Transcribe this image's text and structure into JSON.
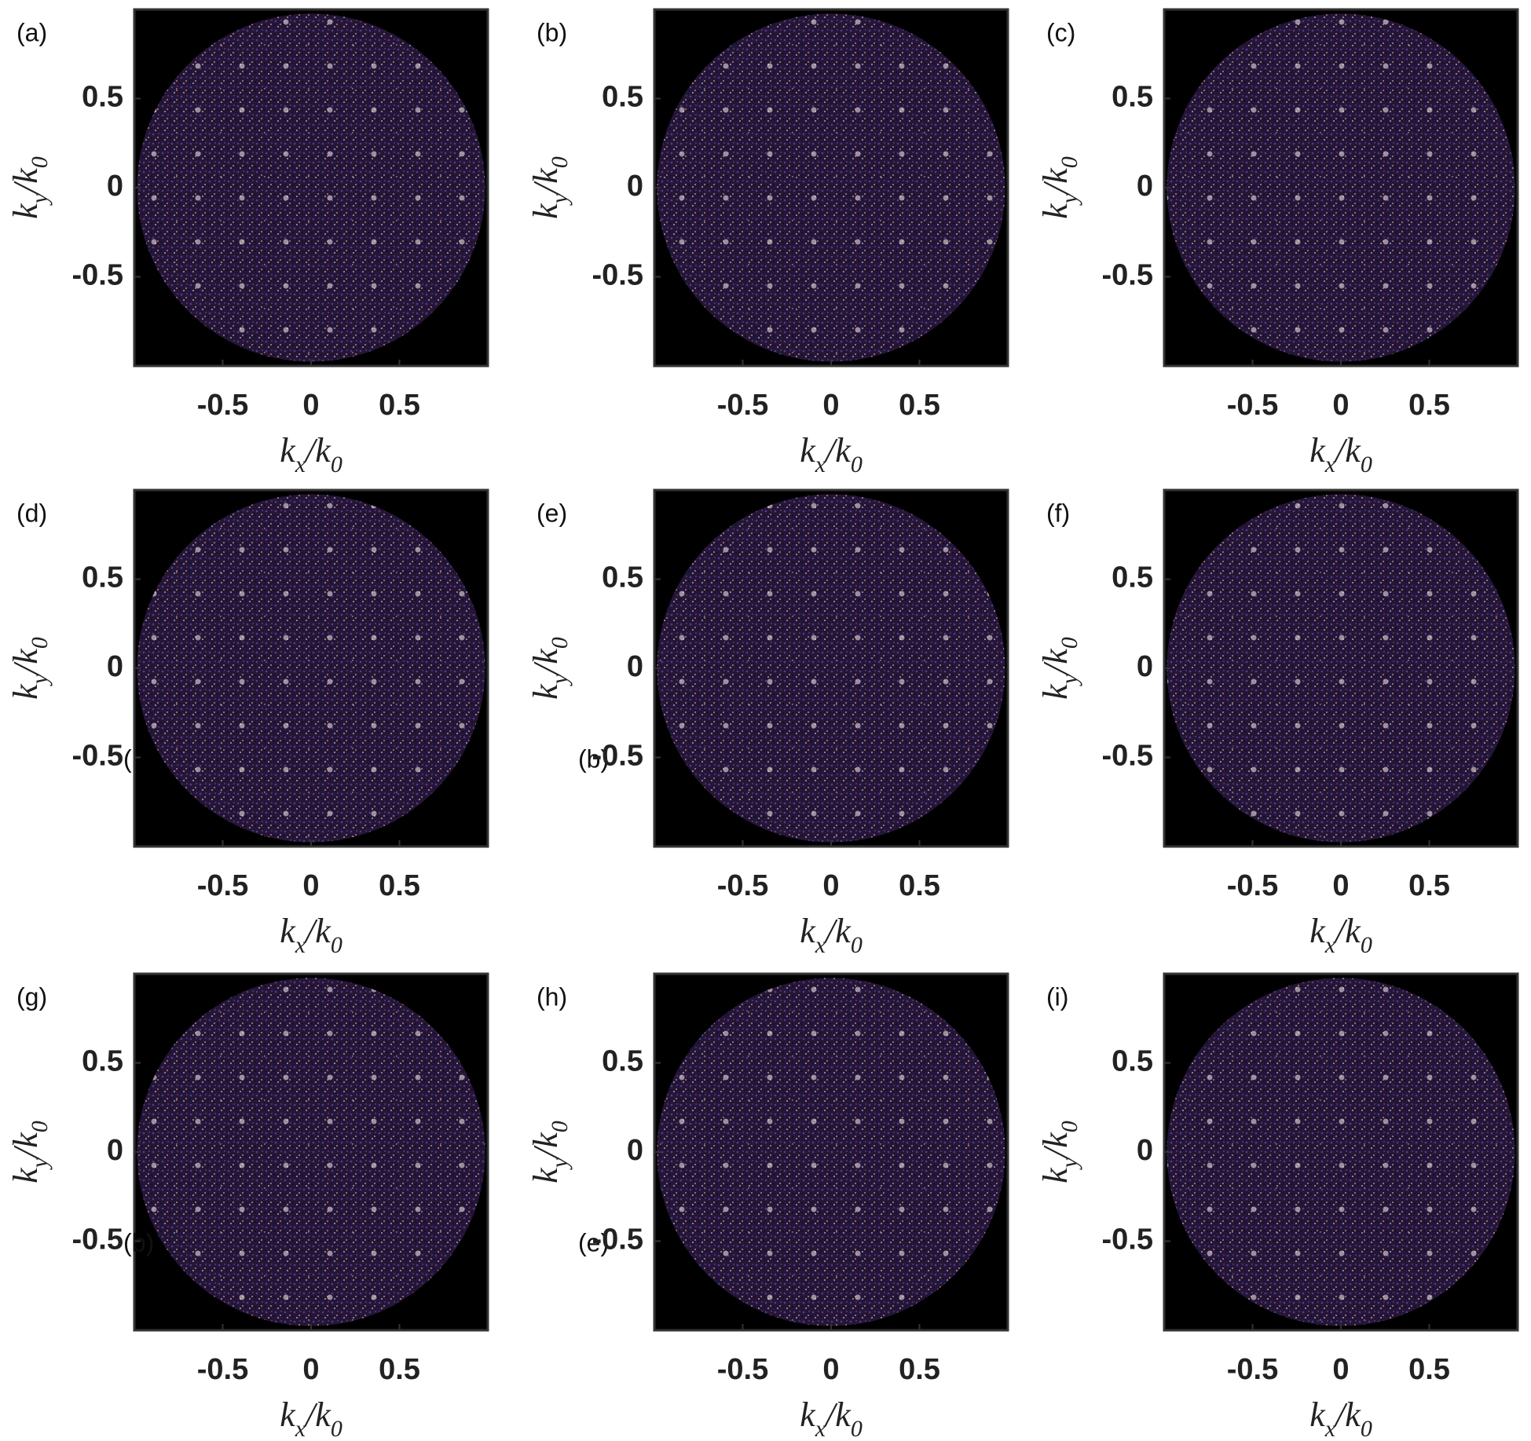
{
  "chart_data": [
    {
      "type": "image",
      "panel_label": "(a)",
      "xlabel": "kx/k0",
      "ylabel": "ky/k0",
      "xlim": [
        -1,
        1
      ],
      "ylim": [
        -1,
        1
      ],
      "xticks": [
        -0.5,
        0,
        0.5
      ],
      "yticks": [
        -0.5,
        0,
        0.5
      ]
    },
    {
      "type": "image",
      "panel_label": "(b)",
      "xlabel": "kx/k0",
      "ylabel": "ky/k0",
      "xlim": [
        -1,
        1
      ],
      "ylim": [
        -1,
        1
      ],
      "xticks": [
        -0.5,
        0,
        0.5
      ],
      "yticks": [
        -0.5,
        0,
        0.5
      ]
    },
    {
      "type": "image",
      "panel_label": "(c)",
      "xlabel": "kx/k0",
      "ylabel": "ky/k0",
      "xlim": [
        -1,
        1
      ],
      "ylim": [
        -1,
        1
      ],
      "xticks": [
        -0.5,
        0,
        0.5
      ],
      "yticks": [
        -0.5,
        0,
        0.5
      ]
    },
    {
      "type": "image",
      "panel_label": "(d)",
      "xlabel": "kx/k0",
      "ylabel": "ky/k0",
      "xlim": [
        -1,
        1
      ],
      "ylim": [
        -1,
        1
      ],
      "xticks": [
        -0.5,
        0,
        0.5
      ],
      "yticks": [
        -0.5,
        0,
        0.5
      ],
      "annotation": "("
    },
    {
      "type": "image",
      "panel_label": "(e)",
      "xlabel": "kx/k0",
      "ylabel": "ky/k0",
      "xlim": [
        -1,
        1
      ],
      "ylim": [
        -1,
        1
      ],
      "xticks": [
        -0.5,
        0,
        0.5
      ],
      "yticks": [
        -0.5,
        0,
        0.5
      ],
      "annotation": "(b)"
    },
    {
      "type": "image",
      "panel_label": "(f)",
      "xlabel": "kx/k0",
      "ylabel": "ky/k0",
      "xlim": [
        -1,
        1
      ],
      "ylim": [
        -1,
        1
      ],
      "xticks": [
        -0.5,
        0,
        0.5
      ],
      "yticks": [
        -0.5,
        0,
        0.5
      ]
    },
    {
      "type": "image",
      "panel_label": "(g)",
      "xlabel": "kx/k0",
      "ylabel": "ky/k0",
      "xlim": [
        -1,
        1
      ],
      "ylim": [
        -1,
        1
      ],
      "xticks": [
        -0.5,
        0,
        0.5
      ],
      "yticks": [
        -0.5,
        0,
        0.5
      ],
      "annotation": "(b)"
    },
    {
      "type": "image",
      "panel_label": "(h)",
      "xlabel": "kx/k0",
      "ylabel": "ky/k0",
      "xlim": [
        -1,
        1
      ],
      "ylim": [
        -1,
        1
      ],
      "xticks": [
        -0.5,
        0,
        0.5
      ],
      "yticks": [
        -0.5,
        0,
        0.5
      ],
      "annotation": "(e)"
    },
    {
      "type": "image",
      "panel_label": "(i)",
      "xlabel": "kx/k0",
      "ylabel": "ky/k0",
      "xlim": [
        -1,
        1
      ],
      "ylim": [
        -1,
        1
      ],
      "xticks": [
        -0.5,
        0,
        0.5
      ],
      "yticks": [
        -0.5,
        0,
        0.5
      ]
    }
  ]
}
